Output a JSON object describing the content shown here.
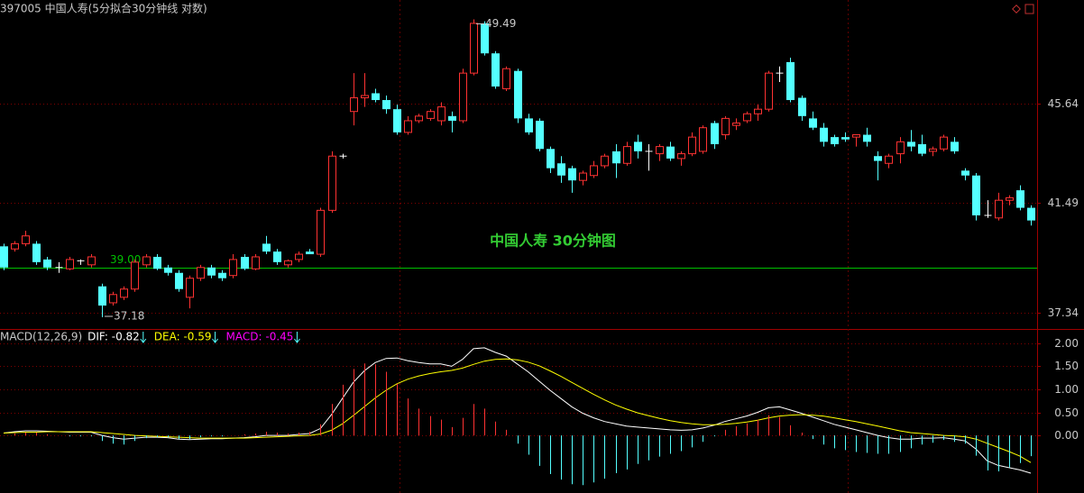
{
  "chart_data": [
    {
      "type": "candlestick",
      "title": "397005 中国人寿(5分拟合30分钟线 对数)",
      "watermark": "中国人寿 30分钟图",
      "log_scale": true,
      "grid": true,
      "ylim": [
        36.86,
        50.2
      ],
      "yticks": [
        37.34,
        41.49,
        45.64
      ],
      "up_color": "#ff3232",
      "down_color": "#54ffff",
      "max_label": 49.49,
      "min_label": 37.18,
      "hline": {
        "value": 39,
        "label": "39.00",
        "color": "#00c000"
      },
      "open": [
        39.8,
        39.7,
        39.9,
        39.9,
        39.3,
        39.0,
        38.95,
        39.25,
        39.1,
        38.3,
        37.7,
        37.9,
        38.2,
        39.1,
        39.4,
        39.0,
        38.8,
        37.9,
        38.6,
        39.0,
        38.8,
        38.7,
        39.4,
        38.95,
        39.9,
        39.6,
        39.1,
        39.3,
        39.6,
        39.5,
        41.2,
        43.4,
        45.3,
        45.9,
        46.1,
        45.8,
        45.4,
        44.4,
        44.9,
        45.0,
        44.9,
        45.1,
        44.9,
        47.0,
        49.3,
        47.9,
        46.3,
        47.1,
        45.0,
        44.9,
        43.7,
        43.1,
        42.9,
        42.4,
        42.6,
        43.0,
        43.6,
        43.1,
        44.0,
        43.6,
        43.5,
        43.8,
        43.3,
        43.5,
        43.6,
        44.8,
        44.3,
        44.7,
        44.9,
        45.2,
        45.4,
        47.0,
        47.5,
        45.9,
        45.0,
        44.6,
        44.2,
        44.2,
        44.2,
        44.3,
        43.4,
        43.1,
        43.5,
        44.0,
        43.9,
        43.6,
        43.7,
        44.0,
        42.8,
        42.6,
        41.0,
        40.9,
        41.6,
        42.0,
        41.3
      ],
      "high": [
        39.9,
        40.0,
        40.4,
        40.0,
        39.4,
        39.2,
        39.4,
        39.3,
        39.5,
        38.4,
        38.1,
        38.3,
        39.3,
        39.5,
        39.5,
        39.1,
        38.9,
        38.7,
        39.1,
        39.1,
        38.9,
        39.5,
        39.5,
        39.5,
        40.2,
        39.7,
        39.3,
        39.6,
        39.7,
        41.3,
        43.6,
        43.5,
        47.0,
        47.0,
        46.3,
        46.0,
        45.6,
        45.1,
        45.2,
        45.4,
        45.7,
        45.3,
        47.2,
        49.49,
        49.4,
        48.0,
        47.3,
        47.2,
        45.2,
        45.0,
        43.8,
        43.4,
        43.0,
        42.8,
        43.2,
        43.5,
        43.9,
        44.0,
        44.3,
        43.9,
        43.9,
        44.0,
        43.6,
        44.4,
        44.7,
        44.9,
        45.1,
        45.0,
        45.3,
        45.6,
        47.1,
        47.3,
        47.7,
        46.0,
        45.3,
        44.8,
        44.3,
        44.4,
        44.3,
        44.6,
        43.6,
        43.5,
        44.2,
        44.5,
        44.3,
        43.8,
        44.3,
        44.2,
        42.9,
        42.7,
        41.6,
        41.9,
        41.8,
        42.2,
        41.4
      ],
      "low": [
        38.9,
        39.6,
        39.8,
        39.1,
        38.9,
        38.8,
        38.9,
        39.1,
        39.0,
        37.18,
        37.6,
        37.8,
        38.1,
        39.0,
        38.9,
        38.7,
        38.1,
        37.5,
        38.5,
        38.6,
        38.5,
        38.6,
        38.9,
        38.9,
        39.5,
        39.1,
        39.0,
        39.2,
        39.5,
        39.4,
        41.1,
        43.3,
        44.7,
        45.5,
        45.7,
        45.2,
        44.3,
        44.3,
        44.8,
        44.9,
        44.7,
        44.4,
        44.8,
        46.9,
        47.8,
        46.3,
        46.2,
        44.8,
        44.3,
        43.6,
        42.7,
        42.3,
        41.9,
        42.2,
        42.5,
        42.9,
        42.5,
        43.0,
        43.3,
        42.8,
        43.2,
        43.2,
        43.0,
        43.4,
        43.5,
        43.7,
        44.1,
        44.5,
        44.8,
        44.9,
        45.3,
        46.6,
        45.7,
        44.9,
        44.5,
        43.8,
        43.8,
        44.0,
        43.8,
        43.8,
        42.4,
        42.9,
        43.1,
        43.6,
        43.4,
        43.4,
        43.6,
        43.5,
        42.4,
        40.8,
        40.9,
        40.8,
        41.4,
        41.2,
        40.6
      ],
      "close": [
        39.0,
        39.9,
        40.2,
        39.2,
        39.0,
        39.0,
        39.3,
        39.25,
        39.4,
        37.6,
        38.0,
        38.2,
        39.2,
        39.4,
        38.95,
        38.8,
        38.2,
        38.6,
        39.0,
        38.7,
        38.6,
        39.3,
        38.95,
        39.4,
        39.6,
        39.2,
        39.25,
        39.5,
        39.5,
        41.2,
        43.4,
        43.4,
        45.9,
        46.0,
        45.8,
        45.4,
        44.4,
        44.9,
        45.1,
        45.3,
        45.5,
        44.9,
        47.0,
        49.3,
        47.9,
        46.4,
        47.2,
        45.0,
        44.4,
        43.7,
        42.9,
        42.6,
        42.4,
        42.7,
        43.0,
        43.4,
        43.1,
        43.8,
        43.6,
        43.6,
        43.8,
        43.3,
        43.5,
        44.2,
        44.6,
        43.9,
        45.0,
        44.8,
        45.2,
        45.4,
        47.0,
        47.0,
        45.8,
        45.1,
        44.6,
        44.0,
        43.9,
        44.1,
        44.3,
        44.0,
        43.2,
        43.4,
        44.0,
        43.8,
        43.5,
        43.7,
        44.2,
        43.6,
        42.6,
        41.0,
        41.0,
        41.6,
        41.7,
        41.3,
        40.8
      ]
    },
    {
      "type": "macd",
      "title": "MACD(12,26,9)",
      "grid": true,
      "ylim": [
        -1.25,
        2.25
      ],
      "yticks": [
        {
          "value": 2,
          "label": "2.00"
        },
        {
          "value": 1.5,
          "label": "1.50"
        },
        {
          "value": 1,
          "label": "1.00"
        },
        {
          "value": 0.5,
          "label": "0.50"
        },
        {
          "value": 0,
          "label": "0.00"
        }
      ],
      "up_color": "#ff3232",
      "down_color": "#54ffff",
      "series": [
        {
          "name": "DIF: -0.82",
          "color": "#ffffff",
          "values": [
            0.05,
            0.08,
            0.1,
            0.1,
            0.09,
            0.08,
            0.07,
            0.07,
            0.07,
            0.0,
            -0.05,
            -0.08,
            -0.06,
            -0.04,
            -0.04,
            -0.05,
            -0.08,
            -0.09,
            -0.08,
            -0.07,
            -0.07,
            -0.06,
            -0.05,
            -0.03,
            0.0,
            0.0,
            0.0,
            0.02,
            0.04,
            0.15,
            0.45,
            0.8,
            1.15,
            1.4,
            1.58,
            1.67,
            1.68,
            1.62,
            1.58,
            1.55,
            1.55,
            1.5,
            1.65,
            1.88,
            1.9,
            1.8,
            1.72,
            1.55,
            1.38,
            1.18,
            0.98,
            0.8,
            0.62,
            0.48,
            0.38,
            0.3,
            0.25,
            0.2,
            0.18,
            0.16,
            0.14,
            0.12,
            0.11,
            0.12,
            0.16,
            0.22,
            0.3,
            0.36,
            0.42,
            0.5,
            0.6,
            0.62,
            0.55,
            0.48,
            0.4,
            0.32,
            0.24,
            0.18,
            0.12,
            0.06,
            0.0,
            -0.05,
            -0.08,
            -0.08,
            -0.06,
            -0.06,
            -0.05,
            -0.08,
            -0.12,
            -0.3,
            -0.55,
            -0.65,
            -0.7,
            -0.75,
            -0.82
          ]
        },
        {
          "name": "DEA: -0.59",
          "color": "#ffff00",
          "values": [
            0.05,
            0.06,
            0.07,
            0.07,
            0.08,
            0.08,
            0.08,
            0.08,
            0.08,
            0.06,
            0.04,
            0.02,
            0.0,
            -0.01,
            -0.02,
            -0.03,
            -0.04,
            -0.05,
            -0.06,
            -0.06,
            -0.06,
            -0.06,
            -0.06,
            -0.05,
            -0.04,
            -0.03,
            -0.02,
            -0.01,
            0.0,
            0.03,
            0.11,
            0.25,
            0.43,
            0.62,
            0.81,
            0.98,
            1.12,
            1.22,
            1.29,
            1.34,
            1.38,
            1.41,
            1.46,
            1.54,
            1.61,
            1.65,
            1.66,
            1.64,
            1.59,
            1.51,
            1.4,
            1.28,
            1.15,
            1.02,
            0.89,
            0.77,
            0.66,
            0.57,
            0.49,
            0.43,
            0.37,
            0.32,
            0.28,
            0.25,
            0.23,
            0.23,
            0.24,
            0.26,
            0.29,
            0.33,
            0.38,
            0.42,
            0.44,
            0.45,
            0.44,
            0.42,
            0.38,
            0.34,
            0.3,
            0.25,
            0.2,
            0.15,
            0.1,
            0.06,
            0.04,
            0.02,
            0.0,
            -0.01,
            -0.03,
            -0.08,
            -0.17,
            -0.26,
            -0.35,
            -0.45,
            -0.59
          ]
        },
        {
          "name": "MACD: -0.45",
          "color": "#ff00ff",
          "histogram": true,
          "values": [
            0,
            0.04,
            0.06,
            0.06,
            0.02,
            0,
            -0.02,
            -0.02,
            -0.02,
            -0.12,
            -0.18,
            -0.2,
            -0.12,
            -0.06,
            -0.04,
            -0.04,
            -0.08,
            -0.08,
            -0.04,
            -0.02,
            -0.02,
            0,
            0.02,
            0.04,
            0.08,
            0.06,
            0.04,
            0.06,
            0.08,
            0.24,
            0.68,
            1.1,
            1.44,
            1.56,
            1.54,
            1.38,
            1.12,
            0.8,
            0.58,
            0.42,
            0.34,
            0.18,
            0.38,
            0.68,
            0.58,
            0.3,
            0.12,
            -0.18,
            -0.42,
            -0.66,
            -0.84,
            -0.96,
            -1.06,
            -1.08,
            -1.02,
            -0.94,
            -0.82,
            -0.74,
            -0.62,
            -0.54,
            -0.46,
            -0.4,
            -0.34,
            -0.26,
            -0.14,
            -0.02,
            0.12,
            0.2,
            0.26,
            0.34,
            0.44,
            0.4,
            0.22,
            0.06,
            -0.08,
            -0.2,
            -0.28,
            -0.32,
            -0.36,
            -0.38,
            -0.4,
            -0.4,
            -0.36,
            -0.28,
            -0.2,
            -0.16,
            -0.1,
            -0.14,
            -0.18,
            -0.44,
            -0.76,
            -0.78,
            -0.7,
            -0.6,
            -0.45
          ]
        }
      ]
    }
  ]
}
